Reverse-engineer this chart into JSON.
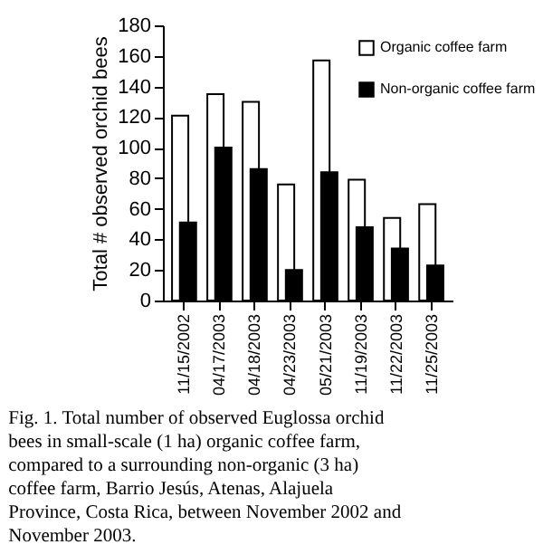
{
  "chart_data": {
    "type": "bar",
    "ylabel": "Total # observed orchid bees",
    "categories": [
      "11/15/2002",
      "04/17/2003",
      "04/18/2003",
      "04/23/2003",
      "05/21/2003",
      "11/19/2003",
      "11/22/2003",
      "11/25/2003"
    ],
    "series": [
      {
        "name": "Organic coffee farm",
        "color": "#ffffff",
        "values": [
          121,
          135,
          130,
          76,
          157,
          79,
          54,
          63
        ]
      },
      {
        "name": "Non-organic coffee farm",
        "color": "#000000",
        "values": [
          51,
          100,
          86,
          20,
          84,
          48,
          34,
          23
        ]
      }
    ],
    "ylim": [
      0,
      180
    ],
    "yticks": [
      0,
      20,
      40,
      60,
      80,
      100,
      120,
      140,
      160,
      180
    ],
    "grid": false,
    "legend": "top right",
    "annotations": [
      "Fig. 1. Total number of observed Euglossa orchid bees in small-scale (1 ha) organic coffee farm, compared to a surrounding non-organic (3 ha) coffee farm, Barrio Jesús, Atenas, Alajuela Province, Costa Rica, between November 2002 and November 2003."
    ]
  }
}
